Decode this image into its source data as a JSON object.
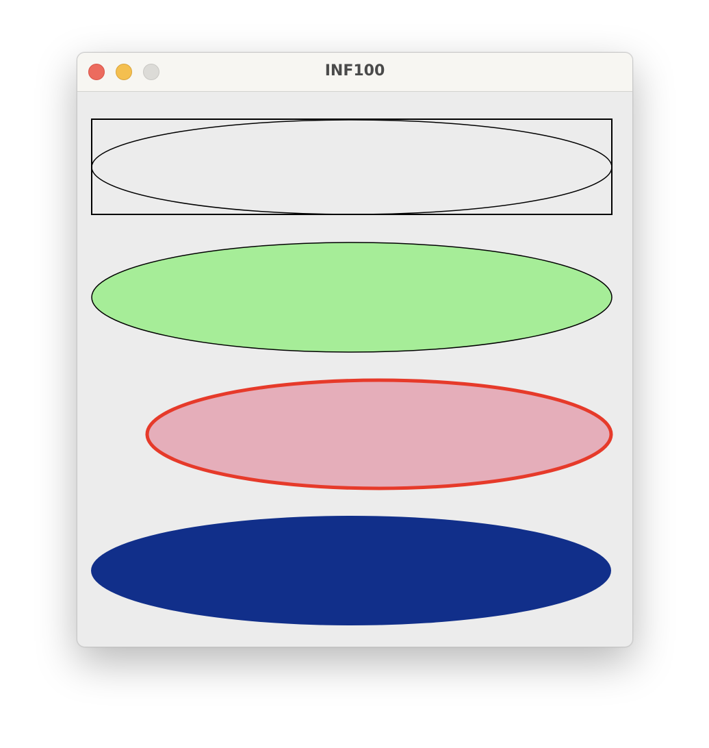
{
  "window": {
    "title": "INF100"
  },
  "titlebar_buttons": [
    {
      "name": "close",
      "color": "#ec6b5e"
    },
    {
      "name": "minimize",
      "color": "#f4bf4f"
    },
    {
      "name": "zoom",
      "color": "#dcdbd7"
    }
  ],
  "shapes": [
    {
      "kind": "rectangle",
      "fill": "none",
      "stroke": "#000000"
    },
    {
      "kind": "oval",
      "fill": "none",
      "stroke": "#000000"
    },
    {
      "kind": "oval",
      "fill": "#a6ed98",
      "stroke": "#000000"
    },
    {
      "kind": "oval",
      "fill": "#e5aeba",
      "stroke": "#e63a2a"
    },
    {
      "kind": "oval",
      "fill": "#112f8a",
      "stroke": "none"
    }
  ]
}
